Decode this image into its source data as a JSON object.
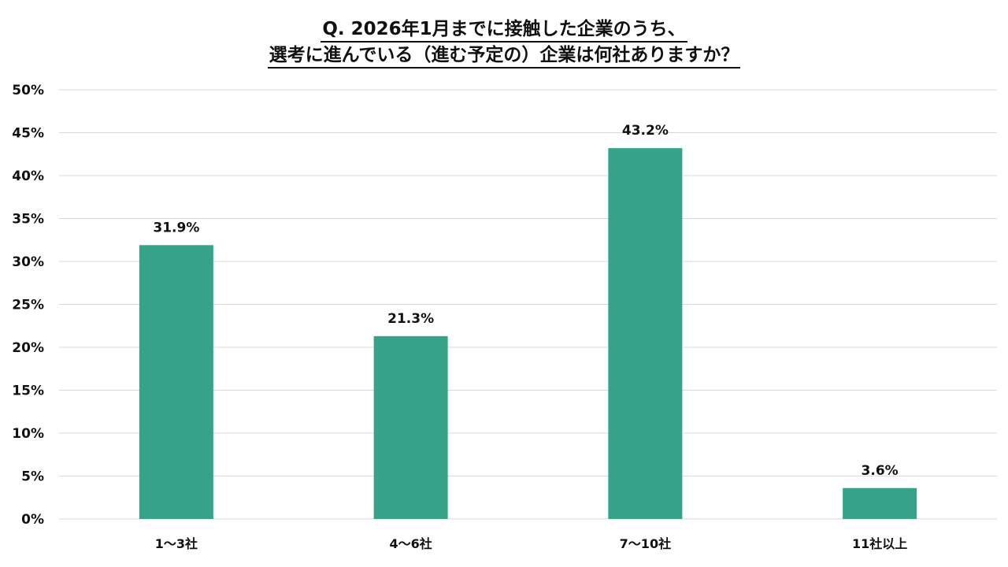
{
  "title_lines": [
    "Q. 2026年1月までに接触した企業のうち、",
    "選考に進んでいる（進む予定の）企業は何社ありますか？"
  ],
  "chart_data": {
    "type": "bar",
    "title": "Q. 2026年1月までに接触した企業のうち、選考に進んでいる（進む予定の）企業は何社ありますか？",
    "categories": [
      "1～3社",
      "4～6社",
      "7～10社",
      "11社以上"
    ],
    "values": [
      31.9,
      21.3,
      43.2,
      3.6
    ],
    "value_labels": [
      "31.9%",
      "21.3%",
      "43.2%",
      "3.6%"
    ],
    "y_ticks": [
      "0%",
      "5%",
      "10%",
      "15%",
      "20%",
      "25%",
      "30%",
      "35%",
      "40%",
      "45%",
      "50%"
    ],
    "ylim": [
      0,
      50
    ],
    "xlabel": "",
    "ylabel": "",
    "grid": true,
    "legend": "none",
    "bar_color": "#36a287",
    "grid_color": "#d9d9d9"
  }
}
